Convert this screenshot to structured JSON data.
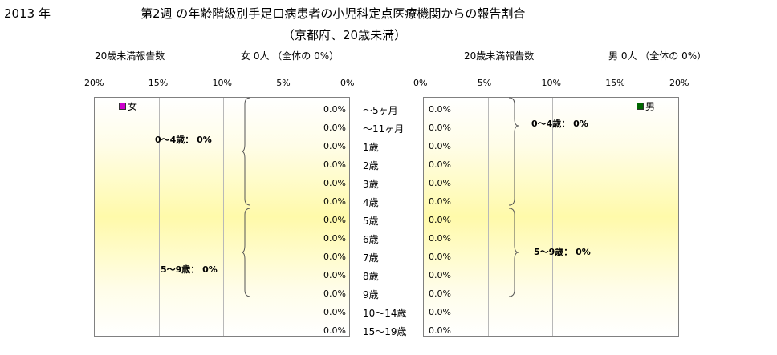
{
  "header": {
    "year": "2013 年",
    "title_line1": "第2週 の年齢階級別手足口病患者の小児科定点医療機関からの報告割合",
    "title_line2": "（京都府、20歳未満）"
  },
  "female": {
    "under20_label": "20歳未満報告数",
    "summary": "女  0人 （全体の   0%）",
    "legend": "女",
    "color": "#cc00cc",
    "group_0_4": "0～4歳： 0%",
    "group_5_9": "5～9歳： 0%"
  },
  "male": {
    "under20_label": "20歳未満報告数",
    "summary": "男  0人 （全体の   0%）",
    "legend": "男",
    "color": "#006600",
    "group_0_4": "0～4歳： 0%",
    "group_5_9": "5～9歳： 0%"
  },
  "axis_ticks_female": [
    "20%",
    "15%",
    "10%",
    "5%",
    "0%"
  ],
  "axis_ticks_male": [
    "0%",
    "5%",
    "10%",
    "15%",
    "20%"
  ],
  "chart_data": {
    "type": "bar",
    "orientation": "horizontal",
    "categories": [
      "～5ヶ月",
      "～11ヶ月",
      "1歳",
      "2歳",
      "3歳",
      "4歳",
      "5歳",
      "6歳",
      "7歳",
      "8歳",
      "9歳",
      "10～14歳",
      "15～19歳"
    ],
    "series": [
      {
        "name": "女",
        "values": [
          0,
          0,
          0,
          0,
          0,
          0,
          0,
          0,
          0,
          0,
          0,
          0,
          0
        ],
        "labels": [
          "0.0%",
          "0.0%",
          "0.0%",
          "0.0%",
          "0.0%",
          "0.0%",
          "0.0%",
          "0.0%",
          "0.0%",
          "0.0%",
          "0.0%",
          "0.0%",
          "0.0%"
        ]
      },
      {
        "name": "男",
        "values": [
          0,
          0,
          0,
          0,
          0,
          0,
          0,
          0,
          0,
          0,
          0,
          0,
          0
        ],
        "labels": [
          "0.0%",
          "0.0%",
          "0.0%",
          "0.0%",
          "0.0%",
          "0.0%",
          "0.0%",
          "0.0%",
          "0.0%",
          "0.0%",
          "0.0%",
          "0.0%",
          "0.0%"
        ]
      }
    ],
    "xlim": [
      0,
      20
    ],
    "unit": "%"
  }
}
